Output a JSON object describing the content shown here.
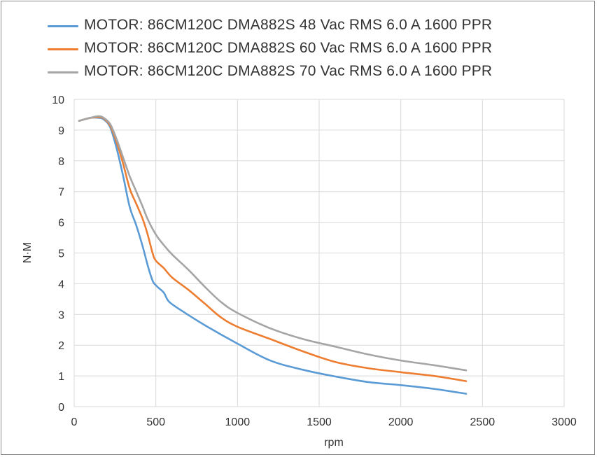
{
  "chart_data": {
    "type": "line",
    "title": "",
    "xlabel": "rpm",
    "ylabel": "N·M",
    "xlim": [
      0,
      3000
    ],
    "ylim": [
      0,
      10
    ],
    "x_ticks": [
      "0",
      "500",
      "1000",
      "1500",
      "2000",
      "2500",
      "3000"
    ],
    "y_ticks": [
      "0",
      "1",
      "2",
      "3",
      "4",
      "5",
      "6",
      "7",
      "8",
      "9",
      "10"
    ],
    "grid": true,
    "legend_position": "top",
    "series": [
      {
        "name": "MOTOR: 86CM120C    DMA882S    48 Vac  RMS  6.0 A  1600 PPR",
        "color": "#5b9bd5",
        "x": [
          30,
          100,
          150,
          180,
          220,
          260,
          300,
          340,
          380,
          420,
          450,
          480,
          500,
          520,
          550,
          580,
          650,
          800,
          1000,
          1200,
          1400,
          1600,
          1800,
          2000,
          2200,
          2400
        ],
        "y": [
          9.3,
          9.4,
          9.4,
          9.35,
          9.1,
          8.4,
          7.5,
          6.5,
          5.9,
          5.2,
          4.6,
          4.1,
          3.95,
          3.85,
          3.7,
          3.42,
          3.15,
          2.65,
          2.05,
          1.5,
          1.2,
          0.98,
          0.8,
          0.7,
          0.58,
          0.42
        ]
      },
      {
        "name": "MOTOR: 86CM120C    DMA882S    60 Vac  RMS  6.0 A  1600 PPR",
        "color": "#ed7d31",
        "x": [
          30,
          100,
          150,
          180,
          220,
          260,
          300,
          340,
          380,
          420,
          450,
          480,
          500,
          550,
          600,
          700,
          800,
          900,
          1000,
          1200,
          1400,
          1600,
          1800,
          2000,
          2200,
          2400
        ],
        "y": [
          9.3,
          9.4,
          9.42,
          9.38,
          9.15,
          8.6,
          7.9,
          7.1,
          6.6,
          6.1,
          5.6,
          5.0,
          4.75,
          4.5,
          4.2,
          3.8,
          3.35,
          2.9,
          2.6,
          2.2,
          1.8,
          1.45,
          1.25,
          1.12,
          1.0,
          0.83
        ]
      },
      {
        "name": "MOTOR: 86CM120C    DMA882S    70 Vac  RMS  6.0 A  1600 PPR",
        "color": "#a5a5a5",
        "x": [
          30,
          100,
          150,
          180,
          220,
          260,
          300,
          340,
          380,
          420,
          450,
          500,
          550,
          600,
          700,
          800,
          900,
          1000,
          1200,
          1400,
          1600,
          1800,
          2000,
          2200,
          2400
        ],
        "y": [
          9.3,
          9.4,
          9.45,
          9.4,
          9.2,
          8.7,
          8.1,
          7.5,
          7.0,
          6.5,
          6.1,
          5.6,
          5.25,
          4.95,
          4.45,
          3.9,
          3.4,
          3.05,
          2.55,
          2.2,
          1.95,
          1.7,
          1.5,
          1.35,
          1.18
        ]
      }
    ]
  }
}
